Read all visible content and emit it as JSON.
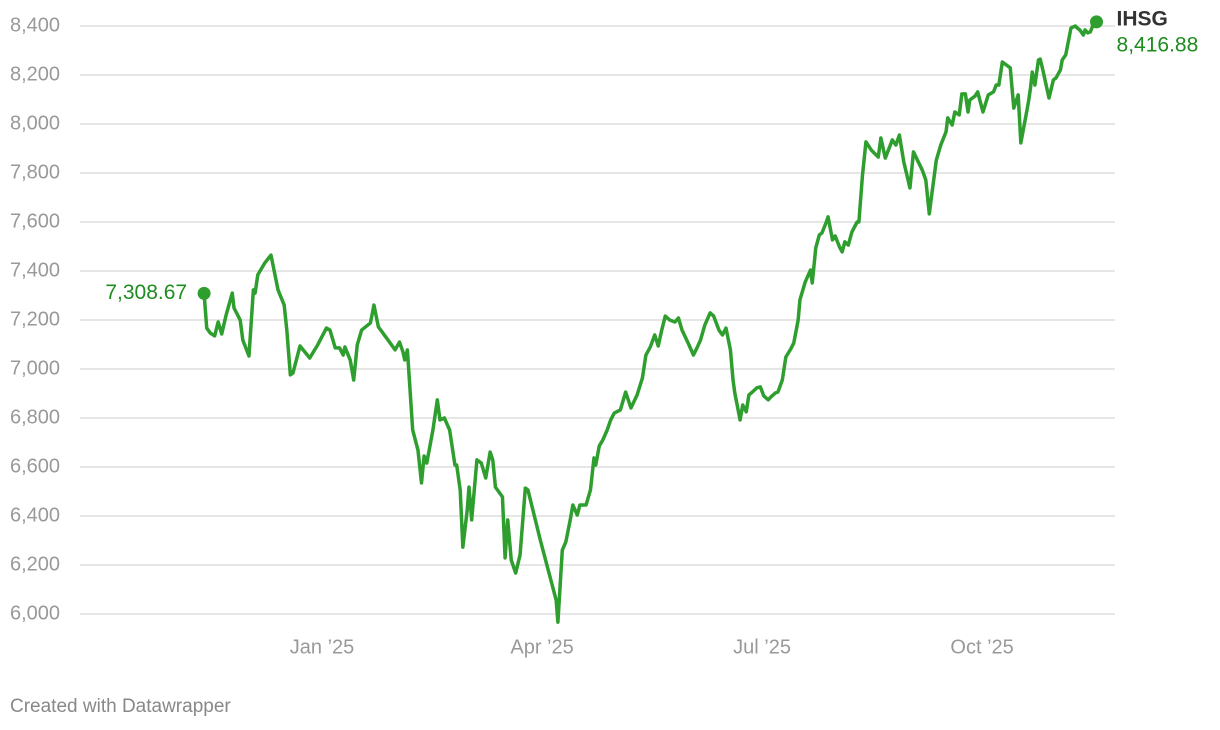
{
  "chart_data": {
    "type": "line",
    "footer": "Created with Datawrapper",
    "xlim": [
      2024.725,
      2025.901
    ],
    "xticks": [
      {
        "value": 2025,
        "label": "Jan ’25"
      },
      {
        "value": 2025.25,
        "label": "Apr ’25"
      },
      {
        "value": 2025.5,
        "label": "Jul ’25"
      },
      {
        "value": 2025.75,
        "label": "Oct ’25"
      }
    ],
    "ylim": [
      6000,
      8400
    ],
    "yticks": [
      {
        "value": 6000,
        "label": "6,000"
      },
      {
        "value": 6200,
        "label": "6,200"
      },
      {
        "value": 6400,
        "label": "6,400"
      },
      {
        "value": 6600,
        "label": "6,600"
      },
      {
        "value": 6800,
        "label": "6,800"
      },
      {
        "value": 7000,
        "label": "7,000"
      },
      {
        "value": 7200,
        "label": "7,200"
      },
      {
        "value": 7400,
        "label": "7,400"
      },
      {
        "value": 7600,
        "label": "7,600"
      },
      {
        "value": 7800,
        "label": "7,800"
      },
      {
        "value": 8000,
        "label": "8,000"
      },
      {
        "value": 8200,
        "label": "8,200"
      },
      {
        "value": 8400,
        "label": "8,400"
      }
    ],
    "grid": true,
    "x": [
      2024.866,
      2024.869,
      2024.873,
      2024.878,
      2024.882,
      2024.886,
      2024.891,
      2024.898,
      2024.9,
      2024.907,
      2024.91,
      2024.917,
      2024.922,
      2024.924,
      2024.927,
      2024.935,
      2024.942,
      2024.95,
      2024.957,
      2024.96,
      2024.964,
      2024.967,
      2024.975,
      2024.986,
      2024.995,
      2025.005,
      2025.009,
      2025.015,
      2025.02,
      2025.024,
      2025.026,
      2025.032,
      2025.036,
      2025.04,
      2025.045,
      2025.055,
      2025.059,
      2025.064,
      2025.075,
      2025.083,
      2025.088,
      2025.092,
      2025.094,
      2025.097,
      2025.103,
      2025.109,
      2025.113,
      2025.116,
      2025.119,
      2025.126,
      2025.131,
      2025.134,
      2025.139,
      2025.145,
      2025.151,
      2025.153,
      2025.157,
      2025.16,
      2025.165,
      2025.167,
      2025.17,
      2025.176,
      2025.181,
      2025.186,
      2025.191,
      2025.194,
      2025.197,
      2025.205,
      2025.208,
      2025.211,
      2025.215,
      2025.22,
      2025.225,
      2025.231,
      2025.234,
      2025.248,
      2025.266,
      2025.268,
      2025.273,
      2025.277,
      2025.282,
      2025.285,
      2025.29,
      2025.293,
      2025.3,
      2025.305,
      2025.309,
      2025.311,
      2025.315,
      2025.319,
      2025.324,
      2025.328,
      2025.332,
      2025.339,
      2025.345,
      2025.351,
      2025.358,
      2025.364,
      2025.368,
      2025.373,
      2025.378,
      2025.382,
      2025.386,
      2025.39,
      2025.395,
      2025.401,
      2025.405,
      2025.409,
      2025.417,
      2025.422,
      2025.426,
      2025.43,
      2025.435,
      2025.441,
      2025.445,
      2025.451,
      2025.455,
      2025.459,
      2025.464,
      2025.467,
      2025.469,
      2025.475,
      2025.478,
      2025.482,
      2025.485,
      2025.489,
      2025.494,
      2025.498,
      2025.502,
      2025.507,
      2025.51,
      2025.515,
      2025.518,
      2025.523,
      2025.527,
      2025.532,
      2025.536,
      2025.541,
      2025.543,
      2025.549,
      2025.555,
      2025.557,
      2025.561,
      2025.565,
      2025.568,
      2025.573,
      2025.575,
      2025.58,
      2025.583,
      2025.588,
      2025.591,
      2025.594,
      2025.598,
      2025.602,
      2025.608,
      2025.61,
      2025.614,
      2025.618,
      2025.624,
      2025.632,
      2025.635,
      2025.64,
      2025.648,
      2025.652,
      2025.656,
      2025.661,
      2025.668,
      2025.672,
      2025.682,
      2025.686,
      2025.69,
      2025.692,
      2025.698,
      2025.703,
      2025.709,
      2025.711,
      2025.716,
      2025.719,
      2025.724,
      2025.727,
      2025.731,
      2025.734,
      2025.736,
      2025.742,
      2025.745,
      2025.751,
      2025.757,
      2025.763,
      2025.766,
      2025.769,
      2025.773,
      2025.782,
      2025.786,
      2025.791,
      2025.794,
      2025.801,
      2025.803,
      2025.805,
      2025.807,
      2025.81,
      2025.814,
      2025.816,
      2025.819,
      2025.824,
      2025.826,
      2025.831,
      2025.834,
      2025.839,
      2025.841,
      2025.845,
      2025.851,
      2025.856,
      2025.858,
      2025.861,
      2025.865,
      2025.867,
      2025.87,
      2025.873,
      2025.876,
      2025.88
    ],
    "series": [
      {
        "name": "IHSG",
        "color": "#2e9e2e",
        "values": [
          7308.67,
          7167,
          7147,
          7135,
          7192,
          7143,
          7220,
          7310,
          7249,
          7200,
          7118,
          7053,
          7323,
          7310,
          7384,
          7433,
          7465,
          7323,
          7261,
          7159,
          6976,
          6984,
          7094,
          7045,
          7098,
          7167,
          7159,
          7086,
          7086,
          7057,
          7090,
          7037,
          6955,
          7098,
          7159,
          7188,
          7261,
          7172,
          7118,
          7078,
          7110,
          7069,
          7037,
          7078,
          6751,
          6669,
          6535,
          6645,
          6616,
          6751,
          6874,
          6792,
          6800,
          6751,
          6608,
          6608,
          6506,
          6273,
          6425,
          6518,
          6384,
          6629,
          6616,
          6555,
          6661,
          6629,
          6518,
          6478,
          6229,
          6384,
          6220,
          6167,
          6241,
          6514,
          6506,
          6302,
          6057,
          5967,
          6261,
          6294,
          6384,
          6445,
          6404,
          6445,
          6445,
          6506,
          6637,
          6608,
          6686,
          6710,
          6751,
          6792,
          6820,
          6833,
          6906,
          6841,
          6894,
          6963,
          7057,
          7090,
          7139,
          7094,
          7159,
          7216,
          7200,
          7192,
          7208,
          7159,
          7098,
          7057,
          7086,
          7118,
          7180,
          7229,
          7216,
          7159,
          7139,
          7167,
          7078,
          6955,
          6902,
          6792,
          6853,
          6825,
          6894,
          6906,
          6923,
          6927,
          6890,
          6874,
          6886,
          6902,
          6906,
          6955,
          7049,
          7078,
          7106,
          7200,
          7282,
          7355,
          7404,
          7351,
          7494,
          7547,
          7555,
          7600,
          7621,
          7527,
          7543,
          7498,
          7478,
          7519,
          7506,
          7559,
          7600,
          7600,
          7788,
          7927,
          7894,
          7865,
          7943,
          7861,
          7935,
          7914,
          7955,
          7845,
          7739,
          7886,
          7812,
          7772,
          7633,
          7690,
          7853,
          7914,
          7968,
          8025,
          7996,
          8049,
          8037,
          8123,
          8123,
          8049,
          8098,
          8114,
          8131,
          8049,
          8119,
          8131,
          8159,
          8159,
          8253,
          8229,
          8065,
          8119,
          7923,
          8057,
          8098,
          8147,
          8212,
          8159,
          8261,
          8265,
          8221,
          8139,
          8106,
          8180,
          8188,
          8221,
          8261,
          8282,
          8392,
          8400,
          8392,
          8384,
          8363,
          8384,
          8372,
          8376,
          8404,
          8416.88
        ],
        "value_labels": {
          "0": "7,308.67",
          "219": "8,416.88"
        }
      }
    ]
  }
}
